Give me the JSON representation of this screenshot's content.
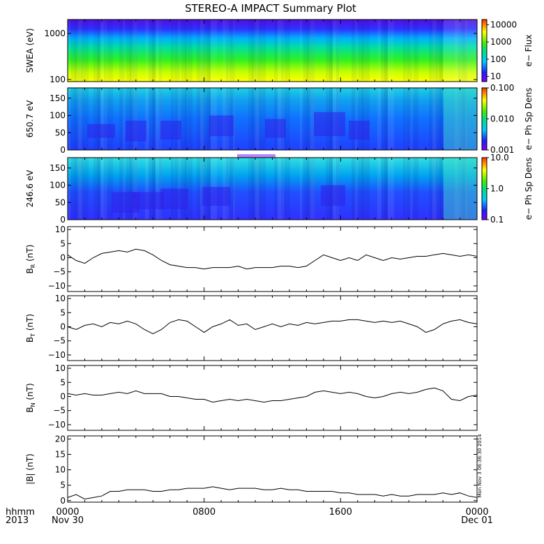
{
  "title": "STEREO-A IMPACT Summary Plot",
  "stamp": "Mon Nov  3 06:36:30 2014",
  "x_axis": {
    "ticks": [
      {
        "hour": 0,
        "label": "0000",
        "sub": "Nov 30"
      },
      {
        "hour": 8,
        "label": "0800",
        "sub": ""
      },
      {
        "hour": 16,
        "label": "1600",
        "sub": ""
      },
      {
        "hour": 24,
        "label": "0000",
        "sub": "Dec 01"
      }
    ],
    "corner_label": "hhmm",
    "corner_year": "2013",
    "range_hours": [
      0,
      24
    ]
  },
  "chart_data": [
    {
      "type": "heatmap",
      "id": "swea",
      "ylabel": "SWEA (eV)",
      "y_scale": "log",
      "ylim": [
        90,
        2000
      ],
      "yticks": [
        100,
        1000
      ],
      "ytick_labels": [
        "100",
        "1000"
      ],
      "colorbar": {
        "label": "e− Flux",
        "scale": "log",
        "range": [
          5,
          20000
        ],
        "ticks": [
          10,
          100,
          1000,
          10000
        ],
        "tick_labels": [
          "10",
          "100",
          "1000",
          "10000"
        ]
      }
    },
    {
      "type": "heatmap",
      "id": "pad650",
      "ylabel": "650.7 eV",
      "y_scale": "linear",
      "ylim": [
        0,
        180
      ],
      "yticks": [
        0,
        50,
        100,
        150
      ],
      "ytick_labels": [
        "0",
        "50",
        "100",
        "150"
      ],
      "colorbar": {
        "label": "e− Ph Sp Dens",
        "scale": "log",
        "range": [
          0.001,
          0.1
        ],
        "ticks": [
          0.001,
          0.01,
          0.1
        ],
        "tick_labels": [
          "0.001",
          "0.010",
          "0.100"
        ]
      }
    },
    {
      "type": "heatmap",
      "id": "pad246",
      "ylabel": "246.6 eV",
      "y_scale": "linear",
      "ylim": [
        0,
        180
      ],
      "yticks": [
        0,
        50,
        100,
        150
      ],
      "ytick_labels": [
        "0",
        "50",
        "100",
        "150"
      ],
      "colorbar": {
        "label": "e− Ph Sp Dens",
        "scale": "log",
        "range": [
          0.1,
          10
        ],
        "ticks": [
          0.1,
          1,
          10
        ],
        "tick_labels": [
          "0.1",
          "1.0",
          "10.0"
        ]
      }
    },
    {
      "type": "line",
      "id": "br",
      "ylabel_main": "B",
      "ylabel_sub": "R",
      "ylabel_unit": " (nT)",
      "ylim": [
        -12,
        11
      ],
      "yticks": [
        -10,
        -5,
        0,
        5,
        10
      ],
      "ytick_labels": [
        "−10",
        "−5",
        "0",
        "5",
        "10"
      ],
      "x": [
        0,
        0.5,
        1,
        1.5,
        2,
        2.5,
        3,
        3.5,
        4,
        4.5,
        5,
        5.5,
        6,
        6.5,
        7,
        7.5,
        8,
        8.5,
        9,
        9.5,
        10,
        10.5,
        11,
        11.5,
        12,
        12.5,
        13,
        13.5,
        14,
        14.5,
        15,
        15.5,
        16,
        16.5,
        17,
        17.5,
        18,
        18.5,
        19,
        19.5,
        20,
        20.5,
        21,
        21.5,
        22,
        22.5,
        23,
        23.5,
        24
      ],
      "y": [
        1,
        -1,
        -2,
        0,
        1.5,
        2,
        2.5,
        2,
        3,
        2.5,
        1,
        -1,
        -2.5,
        -3,
        -3.5,
        -3.5,
        -4,
        -3.5,
        -3.5,
        -3.5,
        -3,
        -4,
        -3.5,
        -3.5,
        -3.5,
        -3,
        -3,
        -3.5,
        -3,
        -1,
        1,
        0,
        -1,
        0,
        -1,
        1,
        0,
        -1,
        0,
        -0.5,
        0,
        0.5,
        0.5,
        1,
        1.5,
        1,
        0.5,
        1,
        0.5
      ]
    },
    {
      "type": "line",
      "id": "bt",
      "ylabel_main": "B",
      "ylabel_sub": "T",
      "ylabel_unit": " (nT)",
      "ylim": [
        -12,
        11
      ],
      "yticks": [
        -10,
        -5,
        0,
        5,
        10
      ],
      "ytick_labels": [
        "−10",
        "−5",
        "0",
        "5",
        "10"
      ],
      "x": [
        0,
        0.5,
        1,
        1.5,
        2,
        2.5,
        3,
        3.5,
        4,
        4.5,
        5,
        5.5,
        6,
        6.5,
        7,
        7.5,
        8,
        8.5,
        9,
        9.5,
        10,
        10.5,
        11,
        11.5,
        12,
        12.5,
        13,
        13.5,
        14,
        14.5,
        15,
        15.5,
        16,
        16.5,
        17,
        17.5,
        18,
        18.5,
        19,
        19.5,
        20,
        20.5,
        21,
        21.5,
        22,
        22.5,
        23,
        23.5,
        24
      ],
      "y": [
        0,
        -1,
        0.5,
        1,
        0,
        1.5,
        1,
        2,
        1,
        -1,
        -2.5,
        -1,
        1.5,
        2.5,
        2,
        0,
        -2,
        0,
        1,
        2.5,
        0.5,
        1,
        -1,
        0,
        1,
        0,
        1,
        0.5,
        1.5,
        1,
        1.5,
        2,
        2,
        2.5,
        2.5,
        2,
        1.5,
        2,
        1.5,
        2,
        1,
        0,
        -2,
        -1,
        1,
        2,
        2.5,
        1.5,
        1
      ]
    },
    {
      "type": "line",
      "id": "bn",
      "ylabel_main": "B",
      "ylabel_sub": "N",
      "ylabel_unit": " (nT)",
      "ylim": [
        -12,
        11
      ],
      "yticks": [
        -10,
        -5,
        0,
        5,
        10
      ],
      "ytick_labels": [
        "−10",
        "−5",
        "0",
        "5",
        "10"
      ],
      "x": [
        0,
        0.5,
        1,
        1.5,
        2,
        2.5,
        3,
        3.5,
        4,
        4.5,
        5,
        5.5,
        6,
        6.5,
        7,
        7.5,
        8,
        8.5,
        9,
        9.5,
        10,
        10.5,
        11,
        11.5,
        12,
        12.5,
        13,
        13.5,
        14,
        14.5,
        15,
        15.5,
        16,
        16.5,
        17,
        17.5,
        18,
        18.5,
        19,
        19.5,
        20,
        20.5,
        21,
        21.5,
        22,
        22.5,
        23,
        23.5,
        24
      ],
      "y": [
        1,
        0.5,
        1,
        0.5,
        0.5,
        1,
        1.5,
        1,
        2,
        1,
        1,
        1,
        0,
        0,
        -0.5,
        -1,
        -1,
        -2,
        -1.5,
        -1,
        -1.5,
        -1,
        -1.5,
        -2,
        -1.5,
        -1.5,
        -1,
        -0.5,
        0,
        1.5,
        2,
        1.5,
        1,
        1.5,
        1,
        0,
        -0.5,
        0,
        1,
        1.5,
        1,
        1.5,
        2.5,
        3,
        2,
        -1,
        -1.5,
        0,
        0.5
      ]
    },
    {
      "type": "line",
      "id": "bmag",
      "ylabel_main": "|B|",
      "ylabel_sub": "",
      "ylabel_unit": " (nT)",
      "ylim": [
        -0.5,
        21
      ],
      "yticks": [
        0,
        5,
        10,
        15,
        20
      ],
      "ytick_labels": [
        "0",
        "5",
        "10",
        "15",
        "20"
      ],
      "x": [
        0,
        0.5,
        1,
        1.5,
        2,
        2.5,
        3,
        3.5,
        4,
        4.5,
        5,
        5.5,
        6,
        6.5,
        7,
        7.5,
        8,
        8.5,
        9,
        9.5,
        10,
        10.5,
        11,
        11.5,
        12,
        12.5,
        13,
        13.5,
        14,
        14.5,
        15,
        15.5,
        16,
        16.5,
        17,
        17.5,
        18,
        18.5,
        19,
        19.5,
        20,
        20.5,
        21,
        21.5,
        22,
        22.5,
        23,
        23.5,
        24
      ],
      "y": [
        1,
        2,
        0.5,
        1,
        1.5,
        3,
        3,
        3.5,
        3.5,
        3.5,
        3,
        3,
        3.5,
        3.5,
        4,
        4,
        4,
        4.5,
        4,
        3.5,
        4,
        4,
        4,
        3.5,
        3.5,
        4,
        3.5,
        3.5,
        3,
        3,
        3,
        3,
        2.5,
        2.5,
        2,
        2,
        2,
        1.5,
        2,
        1.5,
        1.5,
        2,
        2,
        2,
        2.5,
        2,
        2.5,
        1.5,
        1
      ]
    }
  ]
}
